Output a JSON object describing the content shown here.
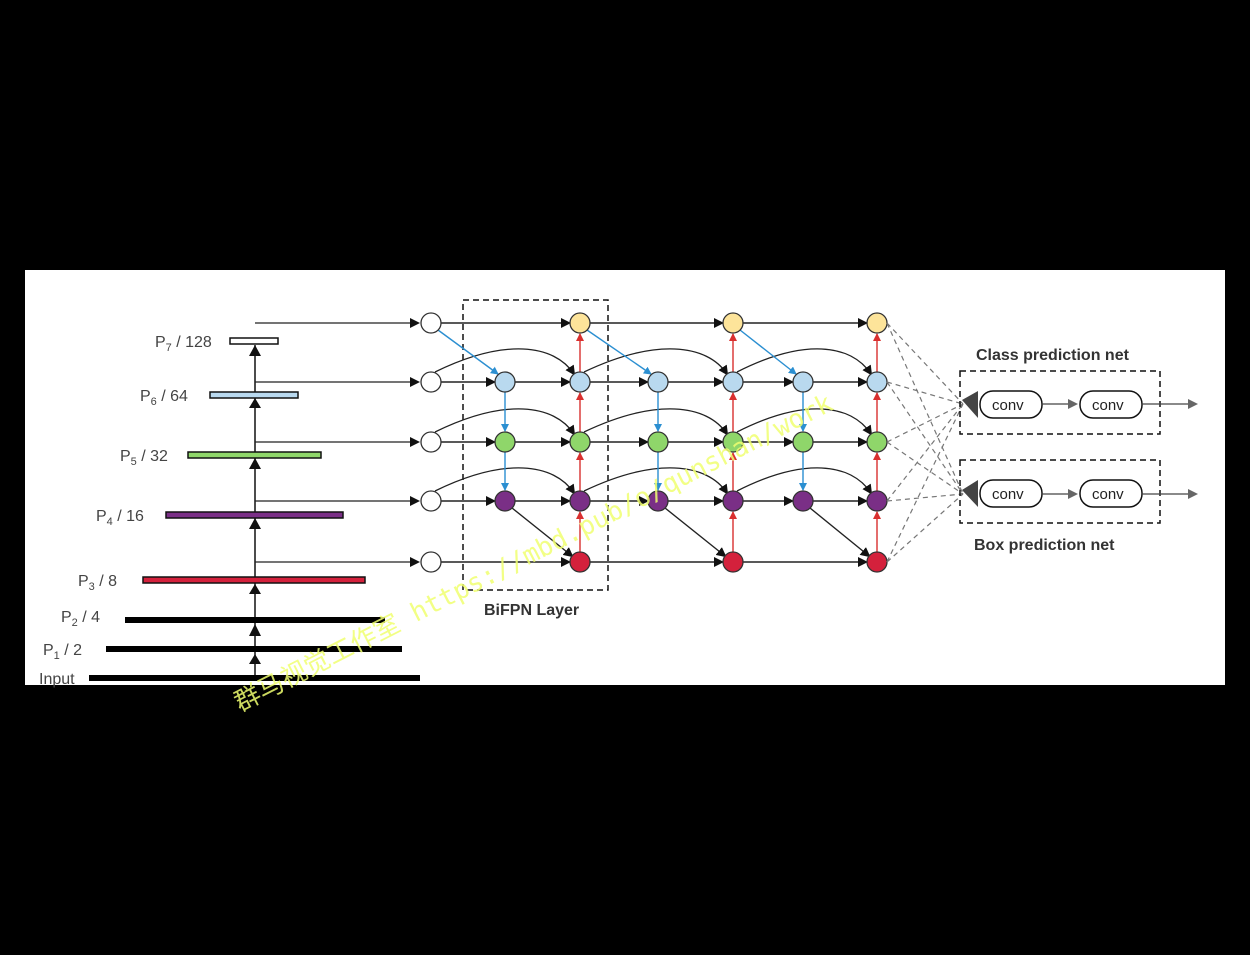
{
  "backbone": {
    "levels": [
      {
        "name": "P",
        "sub": "7",
        "suffix": " / 128",
        "color": "#ffffff"
      },
      {
        "name": "P",
        "sub": "6",
        "suffix": " / 64",
        "color": "#b9d9ef"
      },
      {
        "name": "P",
        "sub": "5",
        "suffix": " / 32",
        "color": "#8fd66a"
      },
      {
        "name": "P",
        "sub": "4",
        "suffix": " / 16",
        "color": "#7a2f86"
      },
      {
        "name": "P",
        "sub": "3",
        "suffix": " / 8",
        "color": "#d4213c"
      },
      {
        "name": "P",
        "sub": "2",
        "suffix": " / 4",
        "color": "#000000"
      },
      {
        "name": "P",
        "sub": "1",
        "suffix": " / 2",
        "color": "#000000"
      }
    ],
    "input_label": "Input"
  },
  "bifpn": {
    "layer_label": "BiFPN Layer",
    "node_colors": {
      "input": "#ffffff",
      "p7": "#fde49a",
      "p6": "#b9d9ef",
      "p5": "#8fd66a",
      "p4": "#7a2f86",
      "p3": "#d4213c"
    },
    "edge_colors": {
      "down": "#2b8fd1",
      "up": "#d9302f",
      "main": "#222222"
    }
  },
  "heads": {
    "class": {
      "title": "Class prediction net",
      "conv_labels": [
        "conv",
        "conv"
      ]
    },
    "box": {
      "title": "Box prediction net",
      "conv_labels": [
        "conv",
        "conv"
      ]
    }
  },
  "watermark": "群马视觉工作室 https://mbd.pub/o/qunshan/work"
}
